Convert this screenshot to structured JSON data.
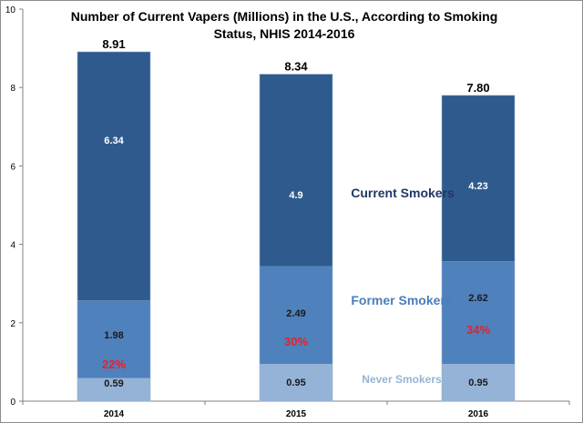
{
  "chart_data": {
    "type": "bar",
    "stacked": true,
    "title_line1": "Number of Current Vapers (Millions) in the U.S., According to Smoking",
    "title_line2": "Status, NHIS 2014-2016",
    "categories": [
      "2014",
      "2015",
      "2016"
    ],
    "ylim": [
      0,
      10
    ],
    "yticks": [
      "0",
      "2",
      "4",
      "6",
      "8",
      "10"
    ],
    "grid": false,
    "series": [
      {
        "name": "Never Smokers",
        "values": [
          0.59,
          0.95,
          0.95
        ],
        "labels": [
          "0.59",
          "0.95",
          "0.95"
        ],
        "color": "#95b3d7",
        "label_color": "#1a1a1a"
      },
      {
        "name": "Former Smokers",
        "values": [
          1.98,
          2.49,
          2.62
        ],
        "labels": [
          "1.98",
          "2.49",
          "2.62"
        ],
        "color": "#4f81bd",
        "label_color": "#1a1a1a"
      },
      {
        "name": "Current Smokers",
        "values": [
          6.34,
          4.9,
          4.23
        ],
        "labels": [
          "6.34",
          "4.9",
          "4.23"
        ],
        "color": "#2e5a8e",
        "label_color": "#ffffff"
      }
    ],
    "totals": [
      "8.91",
      "8.34",
      "7.80"
    ],
    "former_share_labels": [
      "22%",
      "30%",
      "34%"
    ],
    "former_share_color": "#e8202a",
    "series_labels": {
      "current": {
        "text": "Current Smokers",
        "color": "#1f3864"
      },
      "former": {
        "text": "Former Smokers",
        "color": "#4a7ebb"
      },
      "never": {
        "text": "Never Smokers",
        "color": "#95b3d7"
      }
    }
  }
}
